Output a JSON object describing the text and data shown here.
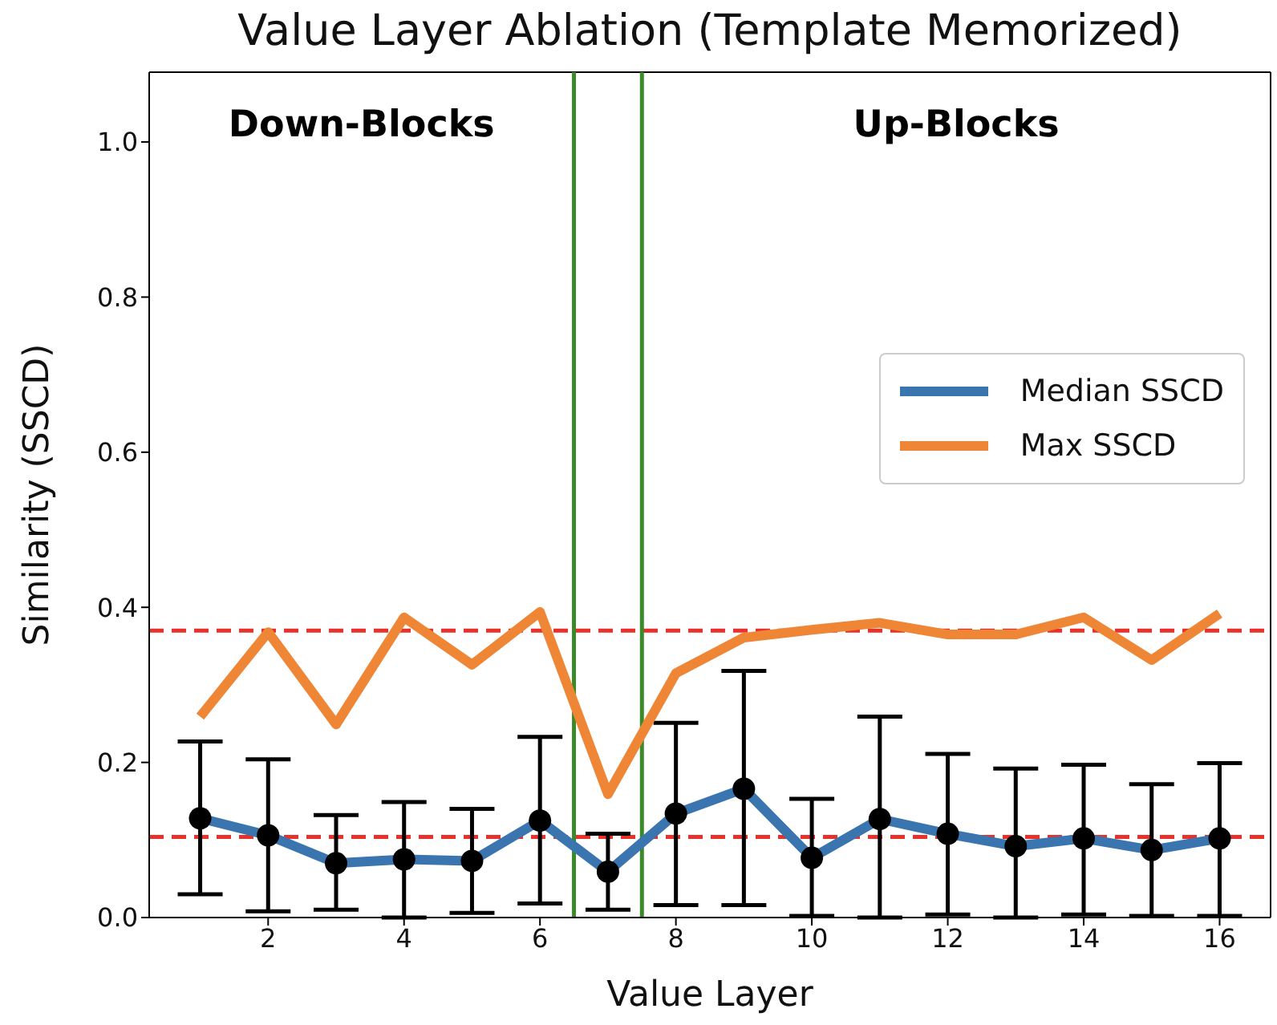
{
  "chart_data": {
    "type": "line",
    "title": "Value Layer Ablation (Template Memorized)",
    "xlabel": "Value Layer",
    "ylabel": "Similarity (SSCD)",
    "x": [
      1,
      2,
      3,
      4,
      5,
      6,
      7,
      8,
      9,
      10,
      11,
      12,
      13,
      14,
      15,
      16
    ],
    "series": [
      {
        "name": "Median SSCD",
        "color": "#3b75af",
        "marker": "circle",
        "values": [
          0.128,
          0.106,
          0.07,
          0.075,
          0.073,
          0.125,
          0.059,
          0.134,
          0.166,
          0.077,
          0.127,
          0.108,
          0.092,
          0.102,
          0.087,
          0.102
        ],
        "errors": [
          [
            0.03,
            0.227
          ],
          [
            0.008,
            0.204
          ],
          [
            0.01,
            0.132
          ],
          [
            0.0,
            0.149
          ],
          [
            0.006,
            0.14
          ],
          [
            0.018,
            0.233
          ],
          [
            0.01,
            0.108
          ],
          [
            0.016,
            0.251
          ],
          [
            0.016,
            0.318
          ],
          [
            0.002,
            0.153
          ],
          [
            0.0,
            0.259
          ],
          [
            0.004,
            0.211
          ],
          [
            0.0,
            0.192
          ],
          [
            0.004,
            0.197
          ],
          [
            0.002,
            0.172
          ],
          [
            0.002,
            0.199
          ]
        ]
      },
      {
        "name": "Max SSCD",
        "color": "#ef8636",
        "marker": "none",
        "values": [
          0.259,
          0.368,
          0.249,
          0.387,
          0.326,
          0.394,
          0.159,
          0.315,
          0.361,
          0.371,
          0.38,
          0.365,
          0.365,
          0.387,
          0.332,
          0.392
        ]
      }
    ],
    "xlim": [
      0.25,
      16.75
    ],
    "xticks": [
      2,
      4,
      6,
      8,
      10,
      12,
      14,
      16
    ],
    "ylim": [
      0,
      1.09
    ],
    "yticks": [
      {
        "value": 0,
        "label": "0.0"
      },
      {
        "value": 0.2,
        "label": "0.2"
      },
      {
        "value": 0.4,
        "label": "0.4"
      },
      {
        "value": 0.6,
        "label": "0.6"
      },
      {
        "value": 0.8,
        "label": "0.8"
      },
      {
        "value": 1,
        "label": "1.0"
      }
    ],
    "ref_lines": [
      {
        "axis": "y",
        "value": 0.37,
        "color": "#e8312a",
        "line_style": "dashed"
      },
      {
        "axis": "y",
        "value": 0.104,
        "color": "#e8312a",
        "line_style": "dashed"
      },
      {
        "axis": "x",
        "value": 6.5,
        "color": "#3a8a2a",
        "line_style": "solid"
      },
      {
        "axis": "x",
        "value": 7.5,
        "color": "#3a8a2a",
        "line_style": "solid"
      }
    ],
    "annotations": [
      "Down-Blocks",
      "Up-Blocks"
    ],
    "grid": false,
    "legend": "center right"
  }
}
